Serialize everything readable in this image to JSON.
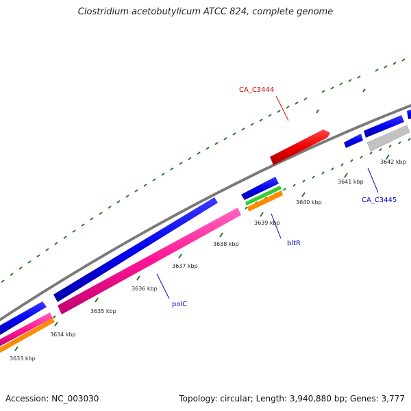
{
  "title": "Clostridium acetobutylicum ATCC 824, complete genome",
  "footer": {
    "accession": "Accession: NC_003030",
    "summary": "Topology: circular; Length: 3,940,880 bp; Genes: 3,777"
  },
  "colors": {
    "backbone": "#808080",
    "tick": "#1a7a1a",
    "cds_forward": "#0000ee",
    "cds_reverse": "#ee0000",
    "rrna": "#ff1493",
    "trna": "#ff8c00",
    "misc": "#32cd32",
    "pseudo": "#c0c0c0"
  },
  "tick_labels": [
    "3633 kbp",
    "3634 kbp",
    "3635 kbp",
    "3636 kbp",
    "3637 kbp",
    "3638 kbp",
    "3639 kbp",
    "3640 kbp",
    "3641 kbp",
    "3642 kbp"
  ],
  "gene_labels": [
    {
      "text": "CA_C3444",
      "color": "#dd0000"
    },
    {
      "text": "CA_C3445",
      "color": "#0000cc"
    },
    {
      "text": "bltR",
      "color": "#0000cc"
    },
    {
      "text": "polC",
      "color": "#0000cc"
    }
  ]
}
